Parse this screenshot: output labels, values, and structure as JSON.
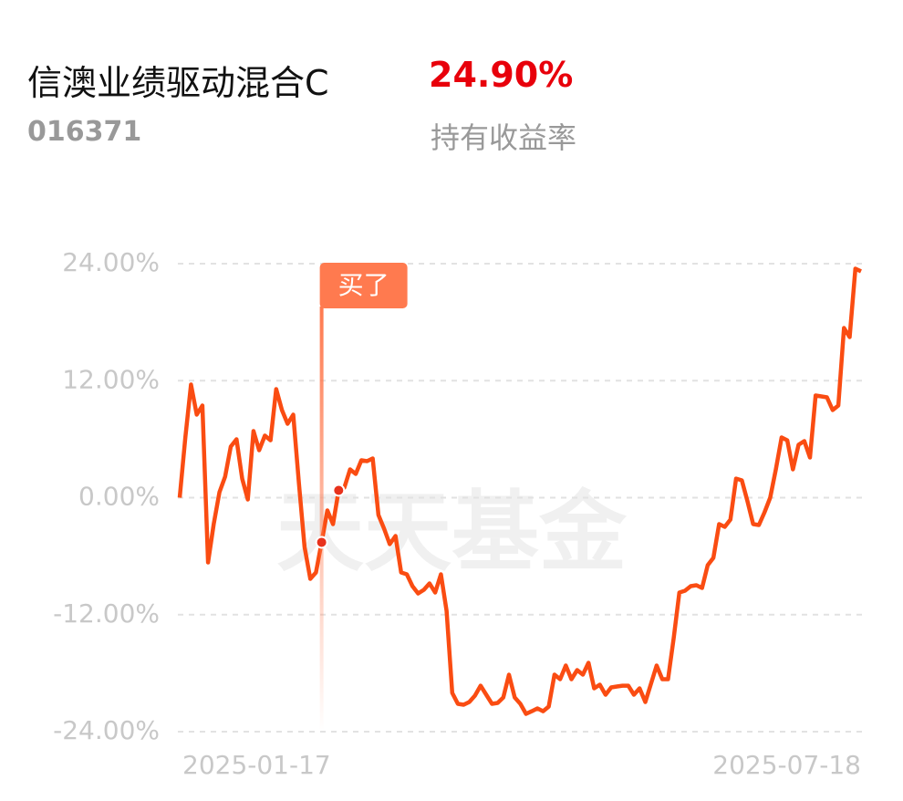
{
  "header": {
    "title": "信澳业绩驱动混合C",
    "return": "24.90%",
    "code": "016371",
    "return_label": "持有收益率"
  },
  "chart_data": {
    "type": "line",
    "watermark": "天天基金",
    "categories": [
      "2025-01-17",
      null,
      null,
      null,
      null,
      null,
      null,
      null,
      null,
      null,
      null,
      null,
      null,
      null,
      null,
      null,
      null,
      null,
      null,
      null,
      null,
      null,
      null,
      null,
      null,
      null,
      null,
      null,
      null,
      null,
      null,
      null,
      null,
      null,
      null,
      null,
      null,
      null,
      null,
      null,
      null,
      null,
      null,
      null,
      null,
      null,
      null,
      null,
      null,
      null,
      null,
      null,
      null,
      null,
      null,
      null,
      null,
      null,
      null,
      null,
      null,
      null,
      null,
      null,
      null,
      null,
      null,
      null,
      null,
      null,
      null,
      null,
      null,
      null,
      null,
      null,
      null,
      null,
      null,
      null,
      null,
      null,
      null,
      null,
      null,
      null,
      null,
      null,
      null,
      null,
      null,
      null,
      null,
      null,
      null,
      null,
      null,
      null,
      null,
      null,
      null,
      null,
      null,
      null,
      null,
      null,
      null,
      null,
      null,
      null,
      null,
      null,
      null,
      null,
      null,
      null,
      null,
      null,
      null,
      null,
      "2025-07-18"
    ],
    "series": [
      {
        "color": "#fa4c12",
        "values": [
          0,
          6.18,
          11.6,
          8.51,
          9.45,
          -6.64,
          -2.71,
          0.56,
          2.15,
          5.24,
          5.99,
          1.96,
          -0.19,
          6.83,
          4.87,
          6.36,
          5.89,
          11.13,
          8.98,
          7.58,
          8.51,
          1.5,
          -5.05,
          -8.33,
          -7.67,
          -4.58,
          -1.31,
          -2.71,
          0.75,
          1.03,
          2.9,
          2.43,
          3.84,
          3.74,
          4.02,
          -1.78,
          -3.18,
          -4.77,
          -3.93,
          -7.67,
          -7.86,
          -9.08,
          -9.82,
          -9.45,
          -8.8,
          -9.73,
          -7.86,
          -11.6,
          -20.02,
          -21.15,
          -21.24,
          -20.96,
          -20.3,
          -19.28,
          -20.21,
          -21.15,
          -21.05,
          -20.49,
          -18.15,
          -20.49,
          -21.15,
          -22.18,
          -21.9,
          -21.61,
          -21.9,
          -21.43,
          -18.15,
          -18.62,
          -17.22,
          -18.62,
          -17.68,
          -18.15,
          -16.94,
          -19.56,
          -19.18,
          -20.21,
          -19.46,
          -19.37,
          -19.28,
          -19.28,
          -20.21,
          -19.56,
          -20.96,
          -19.09,
          -17.22,
          -18.62,
          -18.62,
          -14.41,
          -9.73,
          -9.54,
          -9.08,
          -8.98,
          -9.26,
          -6.92,
          -6.18,
          -2.71,
          -2.99,
          -2.25,
          1.96,
          1.78,
          -0.37,
          -2.71,
          -2.81,
          -1.5,
          0,
          2.9,
          6.18,
          5.89,
          2.9,
          5.43,
          5.8,
          4.12,
          10.48,
          10.39,
          10.29,
          8.98,
          9.45,
          17.4,
          16.47,
          23.49,
          23.21
        ]
      }
    ],
    "markers": [
      25,
      28
    ],
    "marker_color": "#e8321c",
    "buy_label": "买了",
    "buy_color": "#ff7a4f",
    "ylim": [
      -24,
      24
    ],
    "yticks": [
      {
        "value": -24,
        "label": "-24.00%"
      },
      {
        "value": -12,
        "label": "-12.00%"
      },
      {
        "value": 0,
        "label": "0.00%"
      },
      {
        "value": 12,
        "label": "12.00%"
      },
      {
        "value": 24,
        "label": "24.00%"
      }
    ],
    "grid": true
  }
}
